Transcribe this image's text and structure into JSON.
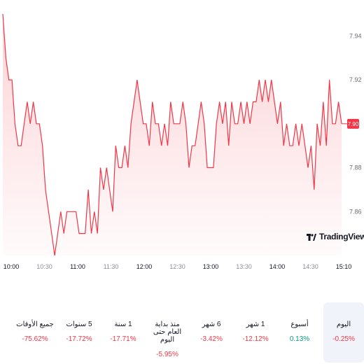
{
  "chart_data": {
    "type": "line",
    "color": "#f23645",
    "fill_color": "#f23645",
    "x_ticks": [
      {
        "t": "10:00",
        "minor": false
      },
      {
        "t": "10:30",
        "minor": true
      },
      {
        "t": "11:00",
        "minor": false
      },
      {
        "t": "11:30",
        "minor": true
      },
      {
        "t": "12:00",
        "minor": false
      },
      {
        "t": "12:30",
        "minor": true
      },
      {
        "t": "13:00",
        "minor": false
      },
      {
        "t": "13:30",
        "minor": true
      },
      {
        "t": "14:00",
        "minor": false
      },
      {
        "t": "14:30",
        "minor": true
      },
      {
        "t": "15:10",
        "minor": false
      }
    ],
    "y_ticks": [
      "7.94",
      "7.92",
      "7.88",
      "7.86"
    ],
    "ylim": [
      7.84,
      7.95
    ],
    "last_price": "7.90",
    "series": [
      7.95,
      7.93,
      7.92,
      7.92,
      7.9,
      7.89,
      7.89,
      7.9,
      7.91,
      7.9,
      7.91,
      7.9,
      7.9,
      7.89,
      7.87,
      7.86,
      7.85,
      7.84,
      7.85,
      7.86,
      7.85,
      7.86,
      7.86,
      7.86,
      7.86,
      7.85,
      7.85,
      7.85,
      7.87,
      7.85,
      7.86,
      7.85,
      7.88,
      7.87,
      7.88,
      7.87,
      7.86,
      7.89,
      7.88,
      7.88,
      7.89,
      7.88,
      7.9,
      7.91,
      7.92,
      7.91,
      7.9,
      7.9,
      7.89,
      7.91,
      7.9,
      7.9,
      7.89,
      7.9,
      7.89,
      7.91,
      7.9,
      7.9,
      7.9,
      7.91,
      7.9,
      7.88,
      7.89,
      7.89,
      7.9,
      7.91,
      7.9,
      7.88,
      7.88,
      7.88,
      7.9,
      7.91,
      7.9,
      7.91,
      7.89,
      7.91,
      7.9,
      7.9,
      7.91,
      7.9,
      7.91,
      7.9,
      7.91,
      7.91,
      7.92,
      7.91,
      7.92,
      7.91,
      7.92,
      7.91,
      7.9,
      7.91,
      7.89,
      7.9,
      7.89,
      7.89,
      7.9,
      7.89,
      7.9,
      7.89,
      7.88,
      7.89,
      7.87,
      7.9,
      7.89,
      7.91,
      7.89,
      7.92,
      7.9,
      7.9,
      7.91,
      7.9
    ]
  },
  "logo": {
    "text": "TradingView"
  },
  "periods": [
    {
      "label": "اليوم",
      "value": "0.25%-",
      "dir": "neg",
      "active": true
    },
    {
      "label": "أسبوع",
      "value": "0.13%",
      "dir": "pos",
      "active": false
    },
    {
      "label": "1 شهر",
      "value": "12.12%-",
      "dir": "neg",
      "active": false
    },
    {
      "label": "6 شهر",
      "value": "3.42%-",
      "dir": "neg",
      "active": false
    },
    {
      "label": "منذ بداية العام حتى اليوم",
      "value": "5.95%-",
      "dir": "neg",
      "active": false
    },
    {
      "label": "1 سنة",
      "value": "17.71%-",
      "dir": "neg",
      "active": false
    },
    {
      "label": "5 سنوات",
      "value": "17.72%-",
      "dir": "neg",
      "active": false
    },
    {
      "label": "جميع الأوقات",
      "value": "75.62%-",
      "dir": "neg",
      "active": false
    }
  ]
}
